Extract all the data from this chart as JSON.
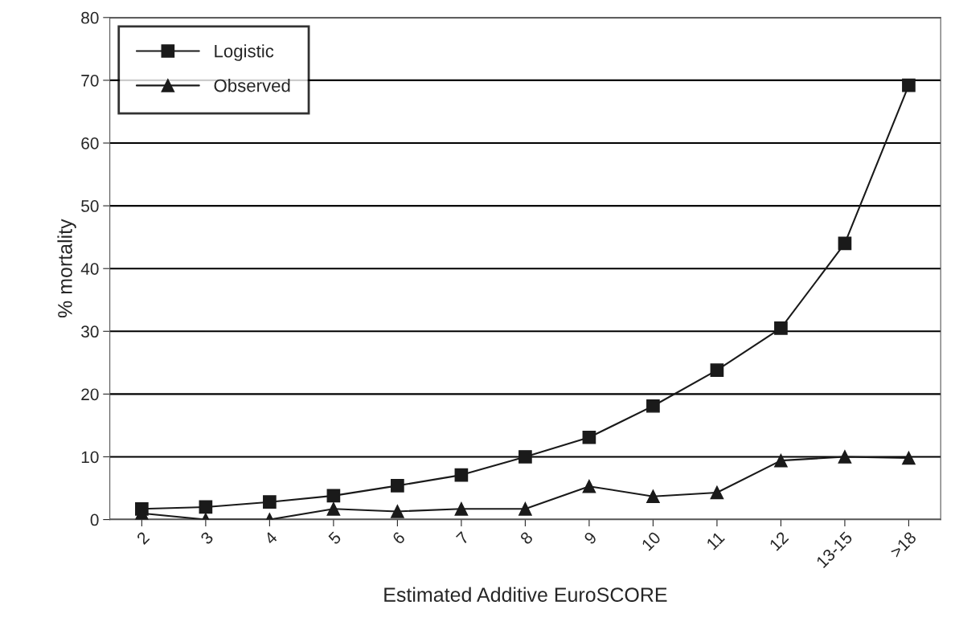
{
  "chart_data": {
    "type": "line",
    "xlabel": "Estimated Additive EuroSCORE",
    "ylabel": "% mortality",
    "categories": [
      "2",
      "3",
      "4",
      "5",
      "6",
      "7",
      "8",
      "9",
      "10",
      "11",
      "12",
      "13-15",
      ">18"
    ],
    "series": [
      {
        "name": "Logistic",
        "color": "#1a1a1a",
        "marker": "square",
        "values": [
          1.7,
          2.0,
          2.8,
          3.8,
          5.4,
          7.1,
          10.0,
          13.1,
          18.1,
          23.8,
          30.5,
          44.0,
          69.2
        ]
      },
      {
        "name": "Observed",
        "color": "#1a1a1a",
        "marker": "triangle",
        "values": [
          1.0,
          0.0,
          0.0,
          1.7,
          1.3,
          1.7,
          1.7,
          5.3,
          3.7,
          4.3,
          9.4,
          10.0,
          9.8
        ]
      }
    ],
    "ylim": [
      0,
      80
    ],
    "yticks": [
      0,
      10,
      20,
      30,
      40,
      50,
      60,
      70,
      80
    ],
    "grid": "y",
    "legend": "top left",
    "line_style": "solid"
  }
}
